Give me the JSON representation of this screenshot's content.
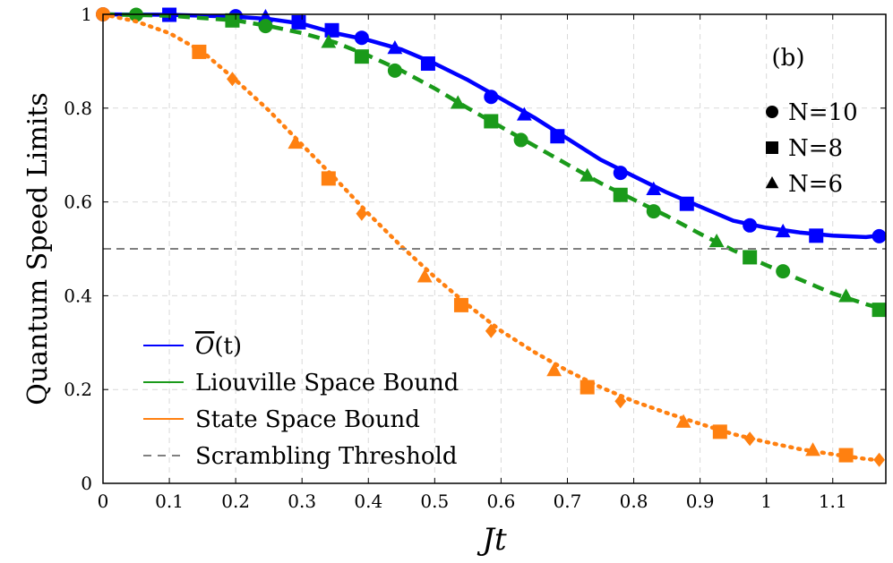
{
  "chart_data": {
    "type": "line",
    "panel_label": "(b)",
    "xlabel": "Jt",
    "ylabel": "Quantum Speed Limits",
    "xlim": [
      0,
      1.18
    ],
    "ylim": [
      0,
      1.0
    ],
    "x_ticks": [
      "0",
      "0.1",
      "0.2",
      "0.3",
      "0.4",
      "0.5",
      "0.6",
      "0.7",
      "0.8",
      "0.9",
      "1",
      "1.1"
    ],
    "y_ticks": [
      "0",
      "0.2",
      "0.4",
      "0.6",
      "0.8",
      "1"
    ],
    "grid": true,
    "legend_position": "bottom-left",
    "marker_legend_position": "top-right",
    "series": [
      {
        "name": "Ō(t)",
        "legend_main": "O",
        "legend_arg": "(t)",
        "color": "#0000ff",
        "style": "solid",
        "curve": {
          "x": [
            0,
            0.1,
            0.2,
            0.25,
            0.3,
            0.35,
            0.4,
            0.45,
            0.5,
            0.55,
            0.6,
            0.65,
            0.7,
            0.75,
            0.8,
            0.85,
            0.9,
            0.95,
            1.0,
            1.05,
            1.1,
            1.15,
            1.18
          ],
          "y": [
            1.0,
            0.999,
            0.995,
            0.99,
            0.98,
            0.96,
            0.945,
            0.925,
            0.895,
            0.86,
            0.82,
            0.78,
            0.735,
            0.69,
            0.655,
            0.62,
            0.59,
            0.56,
            0.545,
            0.535,
            0.528,
            0.525,
            0.53
          ]
        },
        "markers": [
          {
            "shape": "circle",
            "x": 0.0,
            "y": 1.0
          },
          {
            "shape": "square",
            "x": 0.1,
            "y": 0.999
          },
          {
            "shape": "circle",
            "x": 0.2,
            "y": 0.996
          },
          {
            "shape": "triangle",
            "x": 0.245,
            "y": 0.994
          },
          {
            "shape": "square",
            "x": 0.295,
            "y": 0.983
          },
          {
            "shape": "square",
            "x": 0.345,
            "y": 0.966
          },
          {
            "shape": "circle",
            "x": 0.39,
            "y": 0.95
          },
          {
            "shape": "triangle",
            "x": 0.44,
            "y": 0.927
          },
          {
            "shape": "square",
            "x": 0.49,
            "y": 0.895
          },
          {
            "shape": "circle",
            "x": 0.585,
            "y": 0.824
          },
          {
            "shape": "triangle",
            "x": 0.635,
            "y": 0.785
          },
          {
            "shape": "square",
            "x": 0.685,
            "y": 0.74
          },
          {
            "shape": "circle",
            "x": 0.78,
            "y": 0.662
          },
          {
            "shape": "triangle",
            "x": 0.83,
            "y": 0.626
          },
          {
            "shape": "square",
            "x": 0.88,
            "y": 0.596
          },
          {
            "shape": "circle",
            "x": 0.975,
            "y": 0.55
          },
          {
            "shape": "triangle",
            "x": 1.025,
            "y": 0.536
          },
          {
            "shape": "square",
            "x": 1.075,
            "y": 0.528
          },
          {
            "shape": "circle",
            "x": 1.17,
            "y": 0.527
          }
        ]
      },
      {
        "name": "Liouville Space Bound",
        "color": "#1a9a1a",
        "style": "dashed",
        "curve": {
          "x": [
            0,
            0.1,
            0.2,
            0.25,
            0.3,
            0.35,
            0.4,
            0.45,
            0.5,
            0.55,
            0.6,
            0.65,
            0.7,
            0.75,
            0.8,
            0.85,
            0.9,
            0.95,
            1.0,
            1.05,
            1.1,
            1.15,
            1.18
          ],
          "y": [
            1.0,
            0.997,
            0.987,
            0.975,
            0.96,
            0.94,
            0.912,
            0.88,
            0.842,
            0.8,
            0.76,
            0.72,
            0.68,
            0.64,
            0.605,
            0.57,
            0.532,
            0.497,
            0.465,
            0.435,
            0.405,
            0.382,
            0.37
          ]
        },
        "markers": [
          {
            "shape": "circle",
            "x": 0.05,
            "y": 0.999
          },
          {
            "shape": "square",
            "x": 0.195,
            "y": 0.987
          },
          {
            "shape": "circle",
            "x": 0.245,
            "y": 0.975
          },
          {
            "shape": "triangle",
            "x": 0.34,
            "y": 0.94
          },
          {
            "shape": "square",
            "x": 0.39,
            "y": 0.91
          },
          {
            "shape": "circle",
            "x": 0.44,
            "y": 0.88
          },
          {
            "shape": "triangle",
            "x": 0.535,
            "y": 0.81
          },
          {
            "shape": "square",
            "x": 0.585,
            "y": 0.772
          },
          {
            "shape": "circle",
            "x": 0.63,
            "y": 0.732
          },
          {
            "shape": "triangle",
            "x": 0.73,
            "y": 0.655
          },
          {
            "shape": "square",
            "x": 0.78,
            "y": 0.615
          },
          {
            "shape": "circle",
            "x": 0.83,
            "y": 0.58
          },
          {
            "shape": "triangle",
            "x": 0.925,
            "y": 0.515
          },
          {
            "shape": "square",
            "x": 0.975,
            "y": 0.482
          },
          {
            "shape": "circle",
            "x": 1.025,
            "y": 0.452
          },
          {
            "shape": "triangle",
            "x": 1.12,
            "y": 0.398
          },
          {
            "shape": "square",
            "x": 1.17,
            "y": 0.37
          }
        ]
      },
      {
        "name": "State Space Bound",
        "color": "#ff8010",
        "style": "dotted",
        "curve": {
          "x": [
            0,
            0.05,
            0.1,
            0.15,
            0.2,
            0.25,
            0.3,
            0.35,
            0.4,
            0.45,
            0.5,
            0.55,
            0.6,
            0.65,
            0.7,
            0.75,
            0.8,
            0.85,
            0.9,
            0.95,
            1.0,
            1.05,
            1.1,
            1.15,
            1.18
          ],
          "y": [
            1.0,
            0.985,
            0.96,
            0.92,
            0.86,
            0.795,
            0.722,
            0.65,
            0.575,
            0.505,
            0.44,
            0.38,
            0.325,
            0.28,
            0.24,
            0.205,
            0.175,
            0.15,
            0.127,
            0.105,
            0.088,
            0.073,
            0.062,
            0.052,
            0.048
          ]
        },
        "markers": [
          {
            "shape": "circle",
            "x": 0.0,
            "y": 1.0
          },
          {
            "shape": "square",
            "x": 0.145,
            "y": 0.92
          },
          {
            "shape": "diamond",
            "x": 0.195,
            "y": 0.862
          },
          {
            "shape": "triangle",
            "x": 0.29,
            "y": 0.725
          },
          {
            "shape": "square",
            "x": 0.34,
            "y": 0.65
          },
          {
            "shape": "diamond",
            "x": 0.39,
            "y": 0.575
          },
          {
            "shape": "triangle",
            "x": 0.485,
            "y": 0.44
          },
          {
            "shape": "square",
            "x": 0.54,
            "y": 0.38
          },
          {
            "shape": "diamond",
            "x": 0.585,
            "y": 0.325
          },
          {
            "shape": "triangle",
            "x": 0.68,
            "y": 0.24
          },
          {
            "shape": "square",
            "x": 0.73,
            "y": 0.205
          },
          {
            "shape": "diamond",
            "x": 0.78,
            "y": 0.175
          },
          {
            "shape": "triangle",
            "x": 0.875,
            "y": 0.13
          },
          {
            "shape": "square",
            "x": 0.93,
            "y": 0.11
          },
          {
            "shape": "diamond",
            "x": 0.975,
            "y": 0.095
          },
          {
            "shape": "triangle",
            "x": 1.07,
            "y": 0.07
          },
          {
            "shape": "square",
            "x": 1.12,
            "y": 0.06
          },
          {
            "shape": "diamond",
            "x": 1.17,
            "y": 0.05
          }
        ]
      },
      {
        "name": "Scrambling Threshold",
        "color": "#808080",
        "style": "dashed-thin",
        "curve": {
          "x": [
            0,
            1.18
          ],
          "y": [
            0.5,
            0.5
          ]
        }
      }
    ],
    "marker_legend": [
      {
        "shape": "circle",
        "label": "N=10"
      },
      {
        "shape": "square",
        "label": "N=8"
      },
      {
        "shape": "triangle",
        "label": "N=6"
      }
    ]
  }
}
